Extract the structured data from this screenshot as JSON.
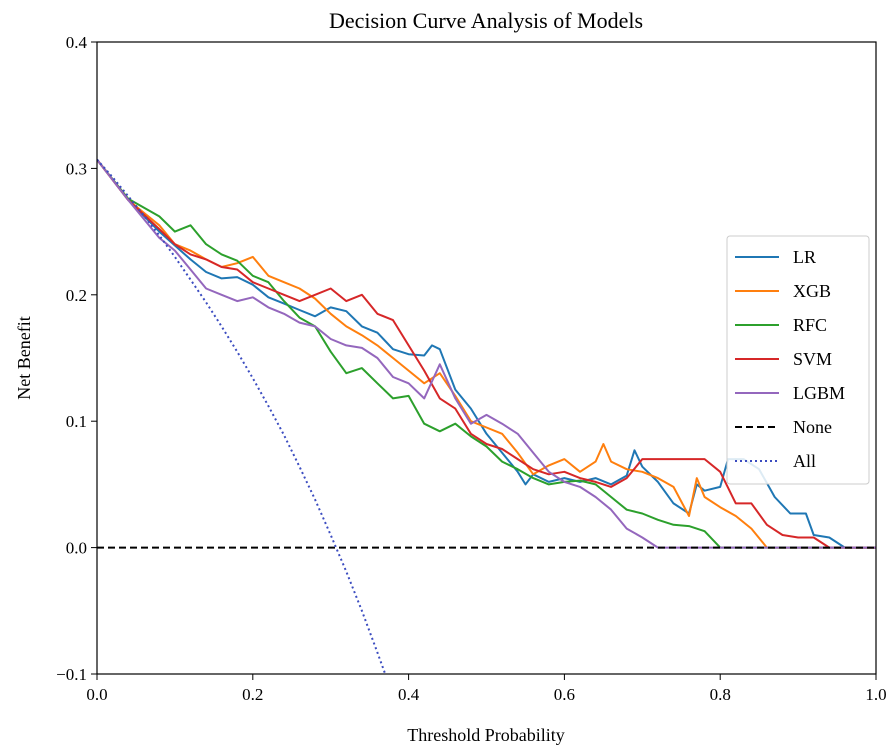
{
  "chart_data": {
    "type": "line",
    "title": "Decision Curve Analysis of Models",
    "xlabel": "Threshold Probability",
    "ylabel": "Net Benefit",
    "xlim": [
      0.0,
      1.0
    ],
    "ylim": [
      -0.1,
      0.4
    ],
    "x_ticks": [
      "0.0",
      "0.2",
      "0.4",
      "0.6",
      "0.8",
      "1.0"
    ],
    "y_ticks": [
      "−0.1",
      "0.0",
      "0.1",
      "0.2",
      "0.3",
      "0.4"
    ],
    "x_tick_values": [
      0.0,
      0.2,
      0.4,
      0.6,
      0.8,
      1.0
    ],
    "y_tick_values": [
      -0.1,
      0.0,
      0.1,
      0.2,
      0.3,
      0.4
    ],
    "grid": false,
    "legend_position": "center-right",
    "series": [
      {
        "name": "LR",
        "color": "#1f77b4",
        "style": "solid",
        "points": [
          [
            0.0,
            0.307
          ],
          [
            0.04,
            0.275
          ],
          [
            0.08,
            0.25
          ],
          [
            0.12,
            0.228
          ],
          [
            0.14,
            0.218
          ],
          [
            0.16,
            0.213
          ],
          [
            0.18,
            0.214
          ],
          [
            0.2,
            0.208
          ],
          [
            0.22,
            0.198
          ],
          [
            0.24,
            0.193
          ],
          [
            0.26,
            0.188
          ],
          [
            0.28,
            0.183
          ],
          [
            0.3,
            0.19
          ],
          [
            0.32,
            0.187
          ],
          [
            0.34,
            0.175
          ],
          [
            0.36,
            0.17
          ],
          [
            0.38,
            0.157
          ],
          [
            0.4,
            0.153
          ],
          [
            0.42,
            0.152
          ],
          [
            0.43,
            0.16
          ],
          [
            0.44,
            0.157
          ],
          [
            0.46,
            0.125
          ],
          [
            0.48,
            0.11
          ],
          [
            0.5,
            0.09
          ],
          [
            0.52,
            0.075
          ],
          [
            0.54,
            0.06
          ],
          [
            0.55,
            0.05
          ],
          [
            0.56,
            0.058
          ],
          [
            0.58,
            0.052
          ],
          [
            0.6,
            0.055
          ],
          [
            0.62,
            0.052
          ],
          [
            0.64,
            0.055
          ],
          [
            0.66,
            0.05
          ],
          [
            0.68,
            0.057
          ],
          [
            0.69,
            0.077
          ],
          [
            0.7,
            0.064
          ],
          [
            0.72,
            0.052
          ],
          [
            0.74,
            0.035
          ],
          [
            0.76,
            0.027
          ],
          [
            0.77,
            0.05
          ],
          [
            0.78,
            0.045
          ],
          [
            0.8,
            0.048
          ],
          [
            0.81,
            0.07
          ],
          [
            0.83,
            0.07
          ],
          [
            0.85,
            0.062
          ],
          [
            0.87,
            0.04
          ],
          [
            0.89,
            0.027
          ],
          [
            0.91,
            0.027
          ],
          [
            0.92,
            0.01
          ],
          [
            0.94,
            0.008
          ],
          [
            0.96,
            0.0
          ],
          [
            1.0,
            0.0
          ]
        ]
      },
      {
        "name": "XGB",
        "color": "#ff7f0e",
        "style": "solid",
        "points": [
          [
            0.0,
            0.307
          ],
          [
            0.04,
            0.275
          ],
          [
            0.08,
            0.255
          ],
          [
            0.1,
            0.24
          ],
          [
            0.12,
            0.235
          ],
          [
            0.14,
            0.228
          ],
          [
            0.16,
            0.222
          ],
          [
            0.18,
            0.225
          ],
          [
            0.2,
            0.23
          ],
          [
            0.22,
            0.215
          ],
          [
            0.24,
            0.21
          ],
          [
            0.26,
            0.205
          ],
          [
            0.28,
            0.197
          ],
          [
            0.3,
            0.185
          ],
          [
            0.32,
            0.175
          ],
          [
            0.34,
            0.168
          ],
          [
            0.36,
            0.16
          ],
          [
            0.38,
            0.15
          ],
          [
            0.4,
            0.14
          ],
          [
            0.42,
            0.13
          ],
          [
            0.44,
            0.138
          ],
          [
            0.46,
            0.12
          ],
          [
            0.48,
            0.1
          ],
          [
            0.5,
            0.095
          ],
          [
            0.52,
            0.09
          ],
          [
            0.54,
            0.075
          ],
          [
            0.56,
            0.058
          ],
          [
            0.58,
            0.065
          ],
          [
            0.6,
            0.07
          ],
          [
            0.62,
            0.06
          ],
          [
            0.64,
            0.068
          ],
          [
            0.65,
            0.082
          ],
          [
            0.66,
            0.068
          ],
          [
            0.68,
            0.062
          ],
          [
            0.7,
            0.06
          ],
          [
            0.72,
            0.055
          ],
          [
            0.74,
            0.048
          ],
          [
            0.76,
            0.025
          ],
          [
            0.77,
            0.055
          ],
          [
            0.78,
            0.04
          ],
          [
            0.8,
            0.032
          ],
          [
            0.82,
            0.025
          ],
          [
            0.84,
            0.015
          ],
          [
            0.86,
            0.0
          ],
          [
            1.0,
            0.0
          ]
        ]
      },
      {
        "name": "RFC",
        "color": "#2ca02c",
        "style": "solid",
        "points": [
          [
            0.0,
            0.307
          ],
          [
            0.04,
            0.276
          ],
          [
            0.08,
            0.262
          ],
          [
            0.1,
            0.25
          ],
          [
            0.12,
            0.255
          ],
          [
            0.14,
            0.24
          ],
          [
            0.16,
            0.232
          ],
          [
            0.18,
            0.227
          ],
          [
            0.2,
            0.215
          ],
          [
            0.22,
            0.21
          ],
          [
            0.24,
            0.195
          ],
          [
            0.26,
            0.182
          ],
          [
            0.28,
            0.175
          ],
          [
            0.3,
            0.155
          ],
          [
            0.32,
            0.138
          ],
          [
            0.34,
            0.142
          ],
          [
            0.36,
            0.13
          ],
          [
            0.38,
            0.118
          ],
          [
            0.4,
            0.12
          ],
          [
            0.42,
            0.098
          ],
          [
            0.44,
            0.092
          ],
          [
            0.46,
            0.098
          ],
          [
            0.48,
            0.088
          ],
          [
            0.5,
            0.08
          ],
          [
            0.52,
            0.068
          ],
          [
            0.54,
            0.062
          ],
          [
            0.56,
            0.055
          ],
          [
            0.58,
            0.05
          ],
          [
            0.6,
            0.052
          ],
          [
            0.62,
            0.053
          ],
          [
            0.64,
            0.05
          ],
          [
            0.66,
            0.04
          ],
          [
            0.68,
            0.03
          ],
          [
            0.7,
            0.027
          ],
          [
            0.72,
            0.022
          ],
          [
            0.74,
            0.018
          ],
          [
            0.76,
            0.017
          ],
          [
            0.78,
            0.013
          ],
          [
            0.8,
            0.0
          ],
          [
            1.0,
            0.0
          ]
        ]
      },
      {
        "name": "SVM",
        "color": "#d62728",
        "style": "solid",
        "points": [
          [
            0.0,
            0.307
          ],
          [
            0.04,
            0.275
          ],
          [
            0.08,
            0.252
          ],
          [
            0.1,
            0.24
          ],
          [
            0.12,
            0.232
          ],
          [
            0.14,
            0.228
          ],
          [
            0.16,
            0.222
          ],
          [
            0.18,
            0.22
          ],
          [
            0.2,
            0.21
          ],
          [
            0.22,
            0.205
          ],
          [
            0.24,
            0.2
          ],
          [
            0.26,
            0.195
          ],
          [
            0.28,
            0.2
          ],
          [
            0.3,
            0.205
          ],
          [
            0.32,
            0.195
          ],
          [
            0.34,
            0.2
          ],
          [
            0.36,
            0.185
          ],
          [
            0.38,
            0.18
          ],
          [
            0.4,
            0.16
          ],
          [
            0.42,
            0.14
          ],
          [
            0.44,
            0.118
          ],
          [
            0.46,
            0.11
          ],
          [
            0.48,
            0.09
          ],
          [
            0.5,
            0.082
          ],
          [
            0.52,
            0.078
          ],
          [
            0.54,
            0.07
          ],
          [
            0.56,
            0.062
          ],
          [
            0.58,
            0.058
          ],
          [
            0.6,
            0.06
          ],
          [
            0.62,
            0.055
          ],
          [
            0.64,
            0.052
          ],
          [
            0.66,
            0.048
          ],
          [
            0.68,
            0.055
          ],
          [
            0.7,
            0.07
          ],
          [
            0.78,
            0.07
          ],
          [
            0.8,
            0.06
          ],
          [
            0.82,
            0.035
          ],
          [
            0.84,
            0.035
          ],
          [
            0.86,
            0.018
          ],
          [
            0.88,
            0.01
          ],
          [
            0.9,
            0.008
          ],
          [
            0.92,
            0.008
          ],
          [
            0.94,
            0.0
          ],
          [
            1.0,
            0.0
          ]
        ]
      },
      {
        "name": "LGBM",
        "color": "#9467bd",
        "style": "solid",
        "points": [
          [
            0.0,
            0.307
          ],
          [
            0.04,
            0.275
          ],
          [
            0.08,
            0.245
          ],
          [
            0.1,
            0.235
          ],
          [
            0.12,
            0.22
          ],
          [
            0.14,
            0.205
          ],
          [
            0.16,
            0.2
          ],
          [
            0.18,
            0.195
          ],
          [
            0.2,
            0.198
          ],
          [
            0.22,
            0.19
          ],
          [
            0.24,
            0.185
          ],
          [
            0.26,
            0.178
          ],
          [
            0.28,
            0.175
          ],
          [
            0.3,
            0.165
          ],
          [
            0.32,
            0.16
          ],
          [
            0.34,
            0.158
          ],
          [
            0.36,
            0.15
          ],
          [
            0.38,
            0.135
          ],
          [
            0.4,
            0.13
          ],
          [
            0.42,
            0.118
          ],
          [
            0.44,
            0.145
          ],
          [
            0.46,
            0.118
          ],
          [
            0.48,
            0.098
          ],
          [
            0.5,
            0.105
          ],
          [
            0.52,
            0.098
          ],
          [
            0.54,
            0.09
          ],
          [
            0.56,
            0.075
          ],
          [
            0.58,
            0.06
          ],
          [
            0.6,
            0.052
          ],
          [
            0.62,
            0.048
          ],
          [
            0.64,
            0.04
          ],
          [
            0.66,
            0.03
          ],
          [
            0.68,
            0.015
          ],
          [
            0.7,
            0.008
          ],
          [
            0.72,
            0.0
          ],
          [
            1.0,
            0.0
          ]
        ]
      },
      {
        "name": "None",
        "color": "#000000",
        "style": "dashed",
        "points": [
          [
            0.0,
            0.0
          ],
          [
            1.0,
            0.0
          ]
        ]
      },
      {
        "name": "All",
        "color": "#3b4cc0",
        "style": "dotted",
        "points": [
          [
            0.0,
            0.307
          ],
          [
            0.02,
            0.293
          ],
          [
            0.04,
            0.278
          ],
          [
            0.06,
            0.263
          ],
          [
            0.08,
            0.247
          ],
          [
            0.1,
            0.23
          ],
          [
            0.12,
            0.212
          ],
          [
            0.14,
            0.194
          ],
          [
            0.16,
            0.175
          ],
          [
            0.18,
            0.155
          ],
          [
            0.2,
            0.134
          ],
          [
            0.22,
            0.112
          ],
          [
            0.24,
            0.089
          ],
          [
            0.26,
            0.064
          ],
          [
            0.28,
            0.038
          ],
          [
            0.3,
            0.01
          ],
          [
            0.32,
            -0.019
          ],
          [
            0.34,
            -0.05
          ],
          [
            0.36,
            -0.083
          ],
          [
            0.37,
            -0.1
          ]
        ]
      }
    ]
  }
}
